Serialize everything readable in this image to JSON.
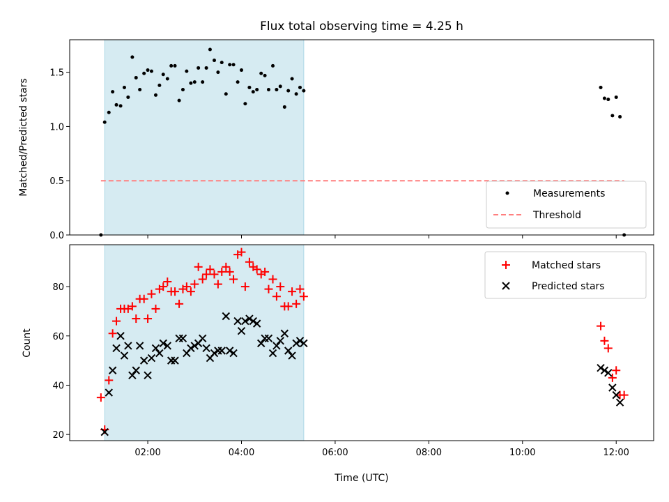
{
  "chart_data": [
    {
      "type": "scatter",
      "title": "Flux total observing time = 4.25 h",
      "xlabel": "",
      "ylabel": "Matched/Predicted stars",
      "xlim": [
        0.333,
        12.8
      ],
      "ylim": [
        0,
        1.8
      ],
      "yticks": [
        0.0,
        0.5,
        1.0,
        1.5
      ],
      "ytick_labels": [
        "0.0",
        "0.5",
        "1.0",
        "1.5"
      ],
      "shaded_span": {
        "x0": 1.08,
        "x1": 5.33,
        "color": "#add8e6"
      },
      "series": [
        {
          "name": "Measurements",
          "marker": "dot",
          "color": "#000000",
          "points": [
            [
              1.0,
              0.0
            ],
            [
              1.08,
              1.04
            ],
            [
              1.17,
              1.13
            ],
            [
              1.25,
              1.32
            ],
            [
              1.33,
              1.2
            ],
            [
              1.42,
              1.19
            ],
            [
              1.5,
              1.36
            ],
            [
              1.58,
              1.27
            ],
            [
              1.67,
              1.64
            ],
            [
              1.75,
              1.45
            ],
            [
              1.83,
              1.34
            ],
            [
              1.92,
              1.49
            ],
            [
              2.0,
              1.52
            ],
            [
              2.08,
              1.51
            ],
            [
              2.17,
              1.29
            ],
            [
              2.25,
              1.38
            ],
            [
              2.33,
              1.48
            ],
            [
              2.42,
              1.44
            ],
            [
              2.5,
              1.56
            ],
            [
              2.58,
              1.56
            ],
            [
              2.67,
              1.24
            ],
            [
              2.75,
              1.34
            ],
            [
              2.83,
              1.51
            ],
            [
              2.92,
              1.4
            ],
            [
              3.0,
              1.41
            ],
            [
              3.08,
              1.54
            ],
            [
              3.17,
              1.41
            ],
            [
              3.25,
              1.54
            ],
            [
              3.33,
              1.71
            ],
            [
              3.42,
              1.61
            ],
            [
              3.5,
              1.5
            ],
            [
              3.58,
              1.59
            ],
            [
              3.67,
              1.3
            ],
            [
              3.75,
              1.57
            ],
            [
              3.83,
              1.57
            ],
            [
              3.92,
              1.41
            ],
            [
              4.0,
              1.52
            ],
            [
              4.08,
              1.21
            ],
            [
              4.17,
              1.36
            ],
            [
              4.25,
              1.32
            ],
            [
              4.33,
              1.34
            ],
            [
              4.42,
              1.49
            ],
            [
              4.5,
              1.47
            ],
            [
              4.58,
              1.34
            ],
            [
              4.67,
              1.56
            ],
            [
              4.75,
              1.34
            ],
            [
              4.83,
              1.37
            ],
            [
              4.92,
              1.18
            ],
            [
              5.0,
              1.33
            ],
            [
              5.08,
              1.44
            ],
            [
              5.17,
              1.3
            ],
            [
              5.25,
              1.36
            ],
            [
              5.33,
              1.33
            ],
            [
              11.67,
              1.36
            ],
            [
              11.75,
              1.26
            ],
            [
              11.83,
              1.25
            ],
            [
              11.92,
              1.1
            ],
            [
              12.0,
              1.27
            ],
            [
              12.08,
              1.09
            ],
            [
              12.17,
              0.0
            ]
          ]
        },
        {
          "name": "Threshold",
          "line": "dashed",
          "color": "#ff7f7f",
          "x": [
            1.0,
            12.17
          ],
          "y": [
            0.5,
            0.5
          ]
        }
      ],
      "legend": {
        "position": "lower-right",
        "entries": [
          "Measurements",
          "Threshold"
        ]
      }
    },
    {
      "type": "scatter",
      "xlabel": "Time (UTC)",
      "ylabel": "Count",
      "xlim": [
        0.333,
        12.8
      ],
      "ylim": [
        17.5,
        97
      ],
      "yticks": [
        20,
        40,
        60,
        80
      ],
      "ytick_labels": [
        "20",
        "40",
        "60",
        "80"
      ],
      "xticks": [
        2,
        4,
        6,
        8,
        10,
        12
      ],
      "xtick_labels": [
        "02:00",
        "04:00",
        "06:00",
        "08:00",
        "10:00",
        "12:00"
      ],
      "shaded_span": {
        "x0": 1.08,
        "x1": 5.33,
        "color": "#add8e6"
      },
      "series": [
        {
          "name": "Matched stars",
          "marker": "plus",
          "color": "#ff0000",
          "points": [
            [
              1.0,
              35
            ],
            [
              1.08,
              22
            ],
            [
              1.17,
              42
            ],
            [
              1.25,
              61
            ],
            [
              1.33,
              66
            ],
            [
              1.42,
              71
            ],
            [
              1.5,
              71
            ],
            [
              1.58,
              71
            ],
            [
              1.67,
              72
            ],
            [
              1.75,
              67
            ],
            [
              1.83,
              75
            ],
            [
              1.92,
              75
            ],
            [
              2.0,
              67
            ],
            [
              2.08,
              77
            ],
            [
              2.17,
              71
            ],
            [
              2.25,
              79
            ],
            [
              2.33,
              80
            ],
            [
              2.42,
              82
            ],
            [
              2.5,
              78
            ],
            [
              2.58,
              78
            ],
            [
              2.67,
              73
            ],
            [
              2.75,
              79
            ],
            [
              2.83,
              80
            ],
            [
              2.92,
              78
            ],
            [
              3.0,
              81
            ],
            [
              3.08,
              88
            ],
            [
              3.17,
              83
            ],
            [
              3.25,
              85
            ],
            [
              3.33,
              87
            ],
            [
              3.42,
              85
            ],
            [
              3.5,
              81
            ],
            [
              3.58,
              86
            ],
            [
              3.67,
              88
            ],
            [
              3.75,
              86
            ],
            [
              3.83,
              83
            ],
            [
              3.92,
              93
            ],
            [
              4.0,
              94
            ],
            [
              4.08,
              80
            ],
            [
              4.17,
              90
            ],
            [
              4.25,
              88
            ],
            [
              4.33,
              87
            ],
            [
              4.42,
              85
            ],
            [
              4.5,
              86
            ],
            [
              4.58,
              79
            ],
            [
              4.67,
              83
            ],
            [
              4.75,
              76
            ],
            [
              4.83,
              80
            ],
            [
              4.92,
              72
            ],
            [
              5.0,
              72
            ],
            [
              5.08,
              78
            ],
            [
              5.17,
              73
            ],
            [
              5.25,
              79
            ],
            [
              5.33,
              76
            ],
            [
              11.67,
              64
            ],
            [
              11.75,
              58
            ],
            [
              11.83,
              55
            ],
            [
              11.92,
              43
            ],
            [
              12.0,
              46
            ],
            [
              12.08,
              36
            ],
            [
              12.17,
              36
            ]
          ]
        },
        {
          "name": "Predicted stars",
          "marker": "x",
          "color": "#000000",
          "points": [
            [
              1.08,
              21
            ],
            [
              1.17,
              37
            ],
            [
              1.25,
              46
            ],
            [
              1.33,
              55
            ],
            [
              1.42,
              60
            ],
            [
              1.5,
              52
            ],
            [
              1.58,
              56
            ],
            [
              1.67,
              44
            ],
            [
              1.75,
              46
            ],
            [
              1.83,
              56
            ],
            [
              1.92,
              50
            ],
            [
              2.0,
              44
            ],
            [
              2.08,
              51
            ],
            [
              2.17,
              55
            ],
            [
              2.25,
              53
            ],
            [
              2.33,
              57
            ],
            [
              2.42,
              56
            ],
            [
              2.5,
              50
            ],
            [
              2.58,
              50
            ],
            [
              2.67,
              59
            ],
            [
              2.75,
              59
            ],
            [
              2.83,
              53
            ],
            [
              2.92,
              55
            ],
            [
              3.0,
              56
            ],
            [
              3.08,
              57
            ],
            [
              3.17,
              59
            ],
            [
              3.25,
              55
            ],
            [
              3.33,
              51
            ],
            [
              3.42,
              53
            ],
            [
              3.5,
              54
            ],
            [
              3.58,
              54
            ],
            [
              3.67,
              68
            ],
            [
              3.75,
              54
            ],
            [
              3.83,
              53
            ],
            [
              3.92,
              66
            ],
            [
              4.0,
              62
            ],
            [
              4.08,
              66
            ],
            [
              4.17,
              67
            ],
            [
              4.25,
              66
            ],
            [
              4.33,
              65
            ],
            [
              4.42,
              57
            ],
            [
              4.5,
              59
            ],
            [
              4.58,
              59
            ],
            [
              4.67,
              53
            ],
            [
              4.75,
              56
            ],
            [
              4.83,
              58
            ],
            [
              4.92,
              61
            ],
            [
              5.0,
              54
            ],
            [
              5.08,
              52
            ],
            [
              5.17,
              57
            ],
            [
              5.25,
              58
            ],
            [
              5.33,
              57
            ],
            [
              11.67,
              47
            ],
            [
              11.75,
              46
            ],
            [
              11.83,
              45
            ],
            [
              11.92,
              39
            ],
            [
              12.0,
              36
            ],
            [
              12.08,
              33
            ]
          ]
        }
      ],
      "legend": {
        "position": "upper-right",
        "entries": [
          "Matched stars",
          "Predicted stars"
        ]
      }
    }
  ]
}
